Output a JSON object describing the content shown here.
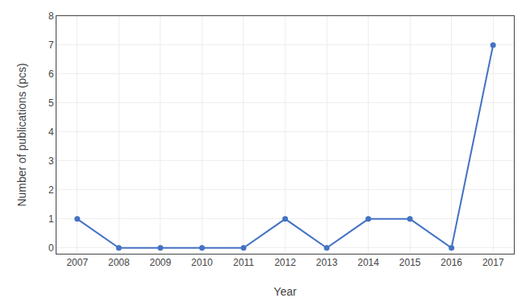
{
  "chart_data": {
    "type": "line",
    "x": [
      2007,
      2008,
      2009,
      2010,
      2011,
      2012,
      2013,
      2014,
      2015,
      2016,
      2017
    ],
    "values": [
      1,
      0,
      0,
      0,
      0,
      1,
      0,
      1,
      1,
      0,
      7
    ],
    "color": "#4472C4",
    "marker": "circle",
    "xlabel": "Year",
    "ylabel": "Number of publications (pcs)",
    "xlim": [
      2006.5,
      2017.5
    ],
    "xticks": [
      2007,
      2008,
      2009,
      2010,
      2011,
      2012,
      2013,
      2014,
      2015,
      2016,
      2017
    ],
    "ylim": [
      -0.2,
      8
    ],
    "yticks": [
      0,
      1,
      2,
      3,
      4,
      5,
      6,
      7,
      8
    ],
    "grid": true
  }
}
